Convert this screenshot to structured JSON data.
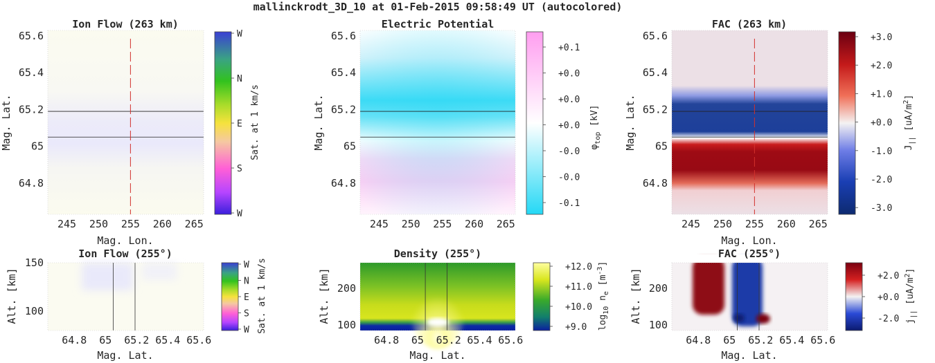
{
  "figure": {
    "title": "mallinckrodt_3D_10 at 01-Feb-2015 09:58:49 UT (autocolored)"
  },
  "chart_data": [
    {
      "id": "ionflow_top",
      "type": "heatmap",
      "title": "Ion Flow (263 km)",
      "xlabel": "Mag. Lon.",
      "ylabel": "Mag. Lat.",
      "xlim": [
        242,
        266.5
      ],
      "ylim": [
        64.63,
        65.63
      ],
      "xticks": [
        "245",
        "250",
        "255",
        "260",
        "265"
      ],
      "xtick_values": [
        245,
        250,
        255,
        260,
        265
      ],
      "yticks": [
        "64.8",
        "65",
        "65.2",
        "65.4",
        "65.6"
      ],
      "ytick_values": [
        64.8,
        65.0,
        65.2,
        65.4,
        65.6
      ],
      "field": "faint lavender band centered near 65.0 on pale yellow background",
      "horizontal_lines": [
        65.19,
        65.05
      ],
      "dashed_vertical_line": 255,
      "colorbar": {
        "label": "Sat. at 1 km/s",
        "ticks": [
          "W",
          "N",
          "E",
          "S",
          "W"
        ],
        "colors": [
          "#3a1fdc",
          "#b645ff",
          "#ff5fd6",
          "#f6d443",
          "#c7e229",
          "#32c91e",
          "#3aa36c",
          "#3a78ac",
          "#3a3fd4"
        ]
      }
    },
    {
      "id": "potential_top",
      "type": "heatmap",
      "title": "Electric Potential",
      "xlabel": "",
      "ylabel": "Mag. Lat.",
      "xlim": [
        242,
        266.5
      ],
      "ylim": [
        64.63,
        65.63
      ],
      "xticks": [
        "245",
        "250",
        "255",
        "260",
        "265"
      ],
      "xtick_values": [
        245,
        250,
        255,
        260,
        265
      ],
      "yticks": [
        "64.8",
        "65",
        "65.2",
        "65.4",
        "65.6"
      ],
      "ytick_values": [
        64.8,
        65.0,
        65.2,
        65.4,
        65.6
      ],
      "field": "cyan minimum near 65.25, pink maximum near 64.85",
      "horizontal_lines": [
        65.19,
        65.05
      ],
      "colorbar": {
        "label": "φ top [kV]",
        "ticks": [
          "+0.1",
          "+0.0",
          "+0.0",
          "+0.0",
          "-0.0",
          "-0.0",
          "-0.1"
        ],
        "colors": [
          "#ff9ef0",
          "#ffffff",
          "#24d8f5"
        ]
      }
    },
    {
      "id": "fac_top",
      "type": "heatmap",
      "title": "FAC (263 km)",
      "xlabel": "Mag. Lon.",
      "ylabel": "Mag. Lat.",
      "xlim": [
        242,
        266.5
      ],
      "ylim": [
        64.63,
        65.63
      ],
      "xticks": [
        "245",
        "250",
        "255",
        "260",
        "265"
      ],
      "xtick_values": [
        245,
        250,
        255,
        260,
        265
      ],
      "yticks": [
        "64.8",
        "65",
        "65.2",
        "65.4",
        "65.6"
      ],
      "ytick_values": [
        64.8,
        65.0,
        65.2,
        65.4,
        65.6
      ],
      "field": "blue band 65.05-65.25, red band 64.75-65.0",
      "horizontal_lines": [
        65.19,
        65.05
      ],
      "dashed_vertical_line": 255,
      "colorbar": {
        "label": "J|| [uA/m2]",
        "ticks": [
          "+3.0",
          "+2.0",
          "+1.0",
          "+0.0",
          "-1.0",
          "-2.0",
          "-3.0"
        ],
        "colors": [
          "#6b0012",
          "#c41a1a",
          "#f07058",
          "#f2f2f2",
          "#6e7de6",
          "#1a3fb4",
          "#0d2a70"
        ]
      }
    },
    {
      "id": "ionflow_bottom",
      "type": "heatmap",
      "title": "Ion Flow (255°)",
      "xlabel": "Mag. Lat.",
      "ylabel": "Alt. [km]",
      "xlim": [
        64.63,
        65.63
      ],
      "ylim": [
        80,
        150
      ],
      "xticks": [
        "64.8",
        "65",
        "65.2",
        "65.4",
        "65.6"
      ],
      "xtick_values": [
        64.8,
        65.0,
        65.2,
        65.4,
        65.6
      ],
      "yticks": [
        "100",
        "150"
      ],
      "ytick_values": [
        100,
        150
      ],
      "vertical_lines": [
        65.05,
        65.19
      ],
      "colorbar": {
        "label": "Sat. at 1 km/s",
        "ticks": [
          "W",
          "N",
          "E",
          "S",
          "W"
        ],
        "colors": [
          "#3a1fdc",
          "#b645ff",
          "#ff5fd6",
          "#f6d443",
          "#c7e229",
          "#32c91e",
          "#3aa36c",
          "#3a78ac",
          "#3a3fd4"
        ]
      }
    },
    {
      "id": "density_bottom",
      "type": "heatmap",
      "title": "Density (255°)",
      "xlabel": "Mag. Lat.",
      "ylabel": "Alt. [km]",
      "xlim": [
        64.63,
        65.63
      ],
      "ylim": [
        85,
        270
      ],
      "xticks": [
        "64.8",
        "65",
        "65.2",
        "65.4",
        "65.6"
      ],
      "xtick_values": [
        64.8,
        65.0,
        65.2,
        65.4,
        65.6
      ],
      "yticks": [
        "100",
        "200"
      ],
      "ytick_values": [
        100,
        200
      ],
      "vertical_lines": [
        65.05,
        65.19
      ],
      "colorbar": {
        "label": "log10 ne [m-3]",
        "ticks": [
          "+12.0",
          "+11.0",
          "+10.0",
          "+9.0"
        ],
        "colors": [
          "#ffffa0",
          "#d9e61e",
          "#3aaa2a",
          "#127f6c",
          "#0b1fa0"
        ]
      }
    },
    {
      "id": "fac_bottom",
      "type": "heatmap",
      "title": "FAC (255°)",
      "xlabel": "Mag. Lat.",
      "ylabel": "Alt. [km]",
      "xlim": [
        64.63,
        65.63
      ],
      "ylim": [
        85,
        270
      ],
      "xticks": [
        "64.8",
        "65",
        "65.2",
        "65.4",
        "65.6"
      ],
      "xtick_values": [
        64.8,
        65.0,
        65.2,
        65.4,
        65.6
      ],
      "yticks": [
        "100",
        "200"
      ],
      "ytick_values": [
        100,
        200
      ],
      "vertical_lines": [
        65.05,
        65.19
      ],
      "colorbar": {
        "label": "j|| [uA/m2]",
        "ticks": [
          "+2.0",
          "+0.0",
          "-2.0"
        ],
        "colors": [
          "#7a0010",
          "#d42020",
          "#f2f2f2",
          "#2a4ad6",
          "#0b1a70"
        ]
      }
    }
  ]
}
